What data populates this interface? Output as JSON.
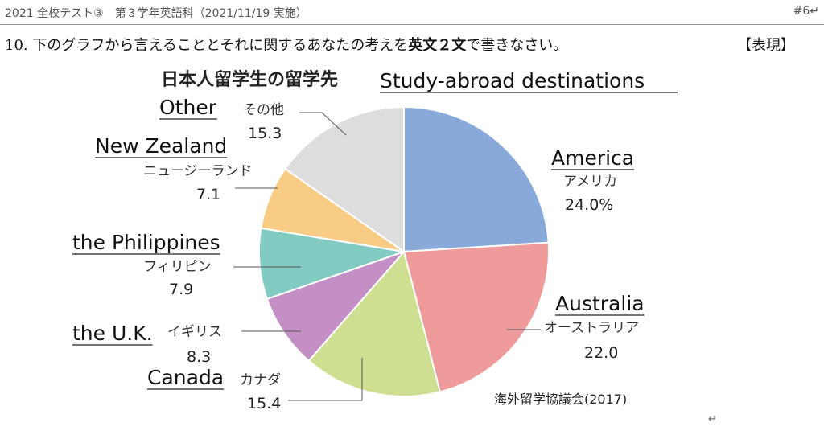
{
  "header": {
    "left": "2021 全校テスト③　第３学年英語科（2021/11/19 実施）",
    "right": "#6↵"
  },
  "question": {
    "number": "10.",
    "text_before": "下のグラフから言えることとそれに関するあなたの考えを",
    "emphasis": "英文２文",
    "text_after": "で書きなさい。",
    "tag": "【表現】"
  },
  "chart_title_ja": "日本人留学生の留学先",
  "chart_title_en": "Study-abroad destinations",
  "source": "海外留学協議会(2017)",
  "chart_data": {
    "type": "pie",
    "title": "日本人留学生の留学先",
    "slices": [
      {
        "en": "America",
        "ja": "アメリカ",
        "label": "24.0%",
        "value": 24.0,
        "color": "#88a9d9"
      },
      {
        "en": "Australia",
        "ja": "オーストラリア",
        "label": "22.0",
        "value": 22.0,
        "color": "#f09b9b"
      },
      {
        "en": "Canada",
        "ja": "カナダ",
        "label": "15.4",
        "value": 15.4,
        "color": "#cfdf92"
      },
      {
        "en": "the U.K.",
        "ja": "イギリス",
        "label": "8.3",
        "value": 8.3,
        "color": "#c48fc4"
      },
      {
        "en": "the Philippines",
        "ja": "フィリピン",
        "label": "7.9",
        "value": 7.9,
        "color": "#82cbc3"
      },
      {
        "en": "New Zealand",
        "ja": "ニュージーランド",
        "label": "7.1",
        "value": 7.1,
        "color": "#f8cc85"
      },
      {
        "en": "Other",
        "ja": "その他",
        "label": "15.3",
        "value": 15.3,
        "color": "#dddddd"
      }
    ]
  }
}
